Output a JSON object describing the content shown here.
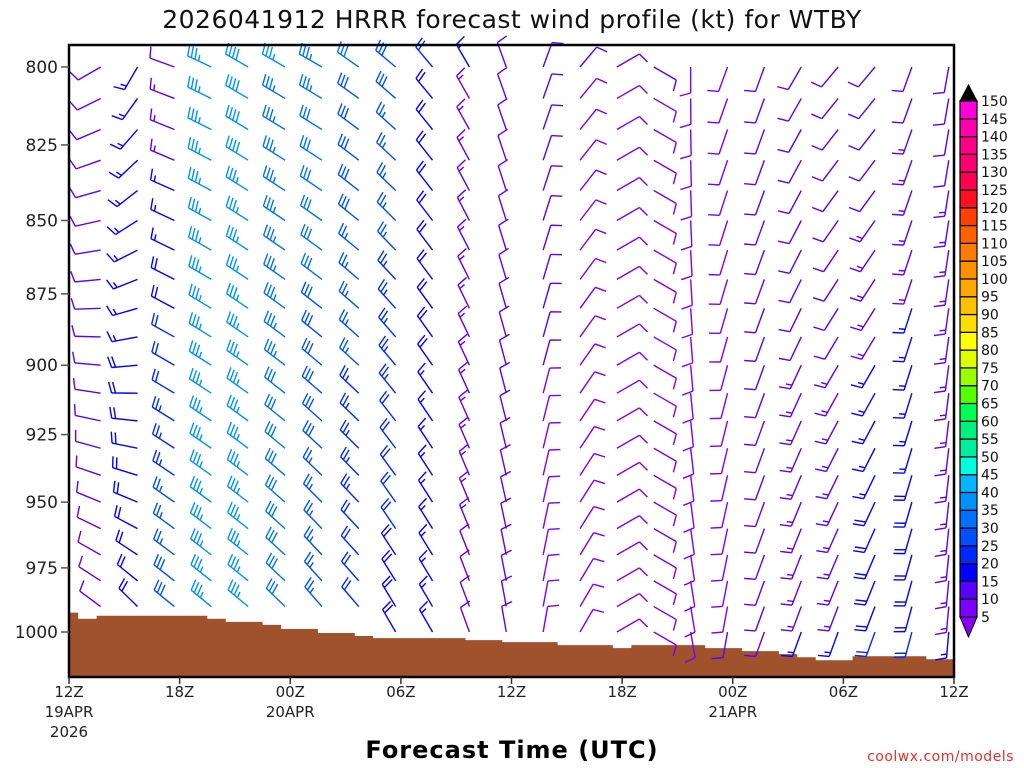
{
  "chart_data": {
    "type": "wind-barb time-height",
    "title": "2026041912 HRRR forecast wind profile (kt) for WTBY",
    "xlabel": "Forecast Time (UTC)",
    "credit": "coolwx.com/models",
    "xlim_hours": [
      0,
      48
    ],
    "ylim_hpa": [
      790,
      1018
    ],
    "y_ticks": [
      "800",
      "825",
      "850",
      "875",
      "900",
      "925",
      "950",
      "975",
      "1000"
    ],
    "x_ticks": [
      {
        "hour": 0,
        "lines": [
          "12Z",
          "19APR",
          "2026"
        ]
      },
      {
        "hour": 6,
        "lines": [
          "18Z"
        ]
      },
      {
        "hour": 12,
        "lines": [
          "00Z",
          "20APR"
        ]
      },
      {
        "hour": 18,
        "lines": [
          "06Z"
        ]
      },
      {
        "hour": 24,
        "lines": [
          "12Z"
        ]
      },
      {
        "hour": 30,
        "lines": [
          "18Z"
        ]
      },
      {
        "hour": 36,
        "lines": [
          "00Z",
          "21APR"
        ]
      },
      {
        "hour": 42,
        "lines": [
          "06Z"
        ]
      },
      {
        "hour": 48,
        "lines": [
          "12Z"
        ]
      }
    ],
    "levels_hpa": [
      800,
      810,
      820,
      830,
      840,
      850,
      860,
      870,
      880,
      890,
      900,
      910,
      920,
      930,
      940,
      950,
      960,
      970,
      980,
      990,
      1000
    ],
    "columns_hour": [
      1.5,
      3.5,
      5.5,
      7.5,
      9.5,
      11.5,
      13.5,
      15.5,
      17.5,
      19.5,
      21.5,
      23.5,
      25.5,
      27.5,
      29.5,
      31.5,
      33.5,
      35.5,
      37.5,
      39.5,
      41.5,
      43.5,
      45.5,
      47.5
    ],
    "wind_dir_upper_deg": [
      240,
      210,
      290,
      295,
      300,
      300,
      300,
      305,
      310,
      320,
      330,
      340,
      20,
      40,
      60,
      120,
      180,
      200,
      200,
      210,
      220,
      220,
      200,
      190
    ],
    "wind_dir_lower_deg": [
      310,
      320,
      310,
      310,
      310,
      315,
      320,
      320,
      330,
      330,
      340,
      350,
      10,
      30,
      60,
      120,
      170,
      190,
      200,
      200,
      200,
      200,
      195,
      185
    ],
    "wind_speed_upper_kt": [
      12,
      15,
      12,
      35,
      38,
      35,
      33,
      30,
      28,
      20,
      15,
      12,
      12,
      10,
      10,
      10,
      8,
      8,
      10,
      10,
      10,
      10,
      12,
      12
    ],
    "wind_speed_lower_kt": [
      10,
      20,
      30,
      35,
      35,
      30,
      25,
      20,
      18,
      15,
      12,
      10,
      8,
      8,
      8,
      8,
      8,
      10,
      12,
      15,
      15,
      20,
      20,
      15
    ],
    "surface_pressure_hpa": [
      [
        0,
        992.4
      ],
      [
        0.5,
        994.8
      ],
      [
        1.5,
        993.6
      ],
      [
        7.5,
        994.8
      ],
      [
        8.5,
        996
      ],
      [
        10.5,
        997.2
      ],
      [
        11.5,
        998.8
      ],
      [
        13.5,
        1000.4
      ],
      [
        15.5,
        1001.6
      ],
      [
        16.5,
        1002.4
      ],
      [
        21.5,
        1003.2
      ],
      [
        23.5,
        1004
      ],
      [
        26.5,
        1005.2
      ],
      [
        29.5,
        1006.4
      ],
      [
        30.5,
        1005.2
      ],
      [
        34.5,
        1006.4
      ],
      [
        36.5,
        1007.6
      ],
      [
        38.5,
        1008.8
      ],
      [
        39.5,
        1010
      ],
      [
        40.5,
        1011.2
      ],
      [
        42.5,
        1009.6
      ],
      [
        46.5,
        1010.8
      ],
      [
        48,
        1012
      ]
    ],
    "terrain_color": "#a0522d",
    "colorbar": {
      "labels": [
        "5",
        "10",
        "15",
        "20",
        "25",
        "30",
        "35",
        "40",
        "45",
        "50",
        "55",
        "60",
        "65",
        "70",
        "75",
        "80",
        "85",
        "90",
        "95",
        "100",
        "105",
        "110",
        "115",
        "120",
        "125",
        "130",
        "135",
        "140",
        "145",
        "150"
      ],
      "colors": [
        "#7a00ff",
        "#5a00ff",
        "#0000ff",
        "#0028ff",
        "#0050ff",
        "#0070ff",
        "#0090ff",
        "#00b8ff",
        "#00ffdd",
        "#00ee9e",
        "#00f080",
        "#00ff55",
        "#55ff00",
        "#99ff00",
        "#ddff00",
        "#ffff00",
        "#ffdd00",
        "#ffc000",
        "#ffa800",
        "#ff9000",
        "#ff7a00",
        "#ff6000",
        "#ff4000",
        "#ff1020",
        "#ff0050",
        "#ff0070",
        "#ff0088",
        "#ff00aa",
        "#ff00dd"
      ],
      "under_color": "#8a00ff",
      "over_color": "#000000"
    }
  }
}
